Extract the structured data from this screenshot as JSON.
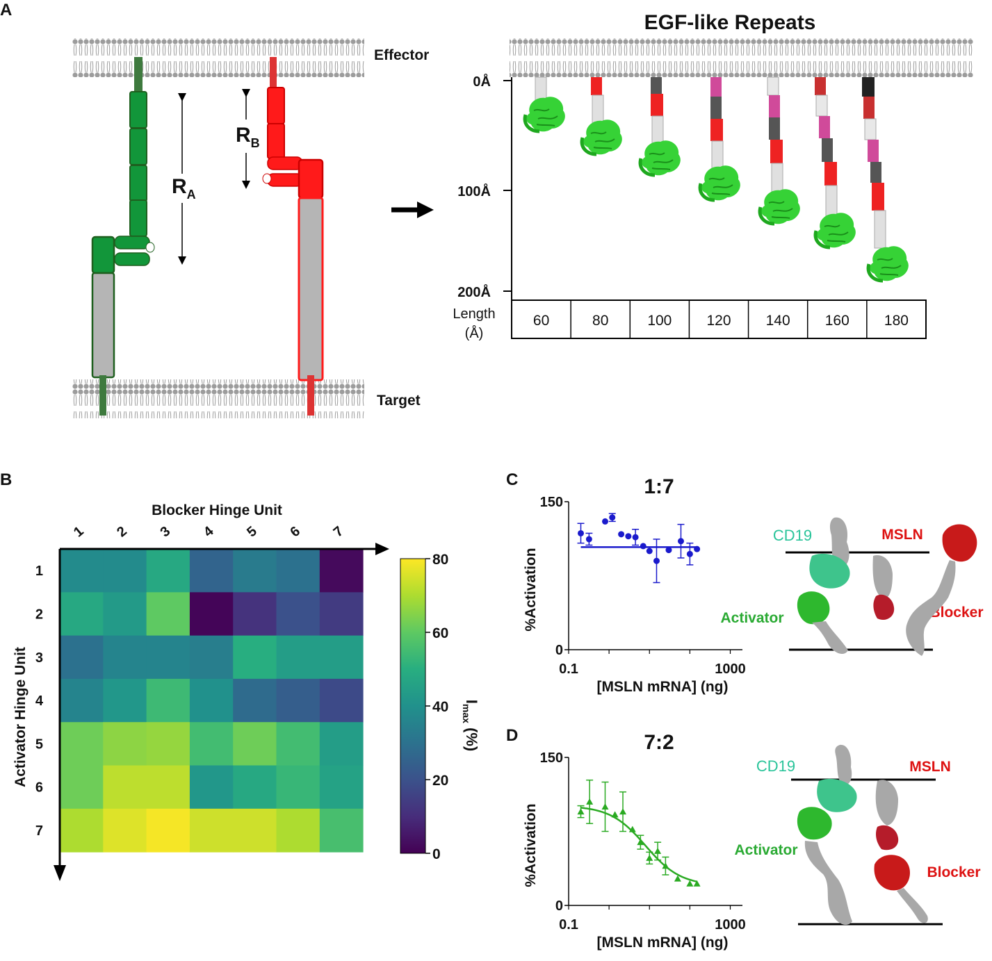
{
  "panels": {
    "a": {
      "letter": "A"
    },
    "b": {
      "letter": "B"
    },
    "c": {
      "letter": "C"
    },
    "d": {
      "letter": "D"
    }
  },
  "panel_a": {
    "effector_label": "Effector",
    "target_label": "Target",
    "ra_label": "R",
    "ra_sub": "A",
    "rb_label": "R",
    "rb_sub": "B",
    "egf_title": "EGF-like Repeats",
    "scale_ticks": [
      "0Å",
      "100Å",
      "200Å"
    ],
    "length_label_1": "Length",
    "length_label_2": "(Å)",
    "lengths": [
      "60",
      "80",
      "100",
      "120",
      "140",
      "160",
      "180"
    ],
    "colors": {
      "activator": "#1a9b3a",
      "blocker": "#ff1a1a",
      "core": "#b5b5b5",
      "globule": "#33cc33"
    }
  },
  "chart_data": [
    {
      "type": "heatmap",
      "title": "Blocker Hinge Unit",
      "xlabel": "Blocker Hinge Unit",
      "ylabel": "Activator Hinge Unit",
      "x": [
        "1",
        "2",
        "3",
        "4",
        "5",
        "6",
        "7"
      ],
      "y": [
        "1",
        "2",
        "3",
        "4",
        "5",
        "6",
        "7"
      ],
      "colorbar_label": "I",
      "colorbar_sub": "max",
      "colorbar_unit": " (%)",
      "colorbar_ticks": [
        "80",
        "60",
        "40",
        "20",
        "0"
      ],
      "vmin": 0,
      "vmax": 80,
      "values": [
        [
          38,
          38,
          48,
          26,
          33,
          30,
          2
        ],
        [
          48,
          43,
          60,
          1,
          12,
          20,
          14
        ],
        [
          30,
          36,
          36,
          34,
          50,
          44,
          44
        ],
        [
          36,
          42,
          54,
          40,
          28,
          24,
          18
        ],
        [
          62,
          66,
          67,
          55,
          62,
          55,
          44
        ],
        [
          62,
          72,
          72,
          42,
          48,
          53,
          46
        ],
        [
          70,
          76,
          79,
          74,
          74,
          70,
          56
        ]
      ]
    },
    {
      "type": "scatter",
      "title": "1:7",
      "ylabel": "%Activation",
      "xlabel": "[MSLN mRNA] (ng)",
      "x_ticks": [
        "0.1",
        "1000"
      ],
      "y_ticks": [
        "150",
        "0"
      ],
      "xlim": [
        0.1,
        2000
      ],
      "ylim": [
        0,
        150
      ],
      "color": "#1a1acc",
      "x": [
        0.2,
        0.32,
        0.8,
        1.2,
        2.0,
        3.0,
        4.5,
        7.0,
        10,
        15,
        30,
        60,
        100,
        150
      ],
      "y": [
        118,
        112,
        130,
        134,
        117,
        115,
        114,
        105,
        100,
        90,
        101,
        110,
        97,
        102
      ],
      "error": [
        10,
        6,
        0,
        4,
        0,
        0,
        8,
        0,
        0,
        22,
        0,
        17,
        11,
        0
      ],
      "fit": {
        "type": "flat",
        "level": 104
      },
      "labels": {
        "cd19": "CD19",
        "msln": "MSLN",
        "activator": "Activator",
        "blocker": "Blocker"
      }
    },
    {
      "type": "scatter",
      "title": "7:2",
      "ylabel": "%Activation",
      "xlabel": "[MSLN mRNA] (ng)",
      "x_ticks": [
        "0.1",
        "1000"
      ],
      "y_ticks": [
        "150",
        "0"
      ],
      "xlim": [
        0.1,
        2000
      ],
      "ylim": [
        0,
        150
      ],
      "color": "#2aaa22",
      "marker": "triangle",
      "x": [
        0.2,
        0.33,
        0.8,
        1.4,
        2.2,
        3.8,
        6.0,
        10,
        16,
        25,
        50,
        100,
        150
      ],
      "y": [
        95,
        105,
        100,
        92,
        95,
        77,
        64,
        48,
        55,
        40,
        27,
        22,
        22
      ],
      "error": [
        6,
        22,
        25,
        0,
        20,
        0,
        7,
        6,
        9,
        9,
        0,
        0,
        0
      ],
      "fit": {
        "type": "sigmoid",
        "top": 101,
        "bottom": 20,
        "ec50": 8,
        "hill": 1.0
      },
      "labels": {
        "cd19": "CD19",
        "msln": "MSLN",
        "activator": "Activator",
        "blocker": "Blocker"
      }
    }
  ]
}
